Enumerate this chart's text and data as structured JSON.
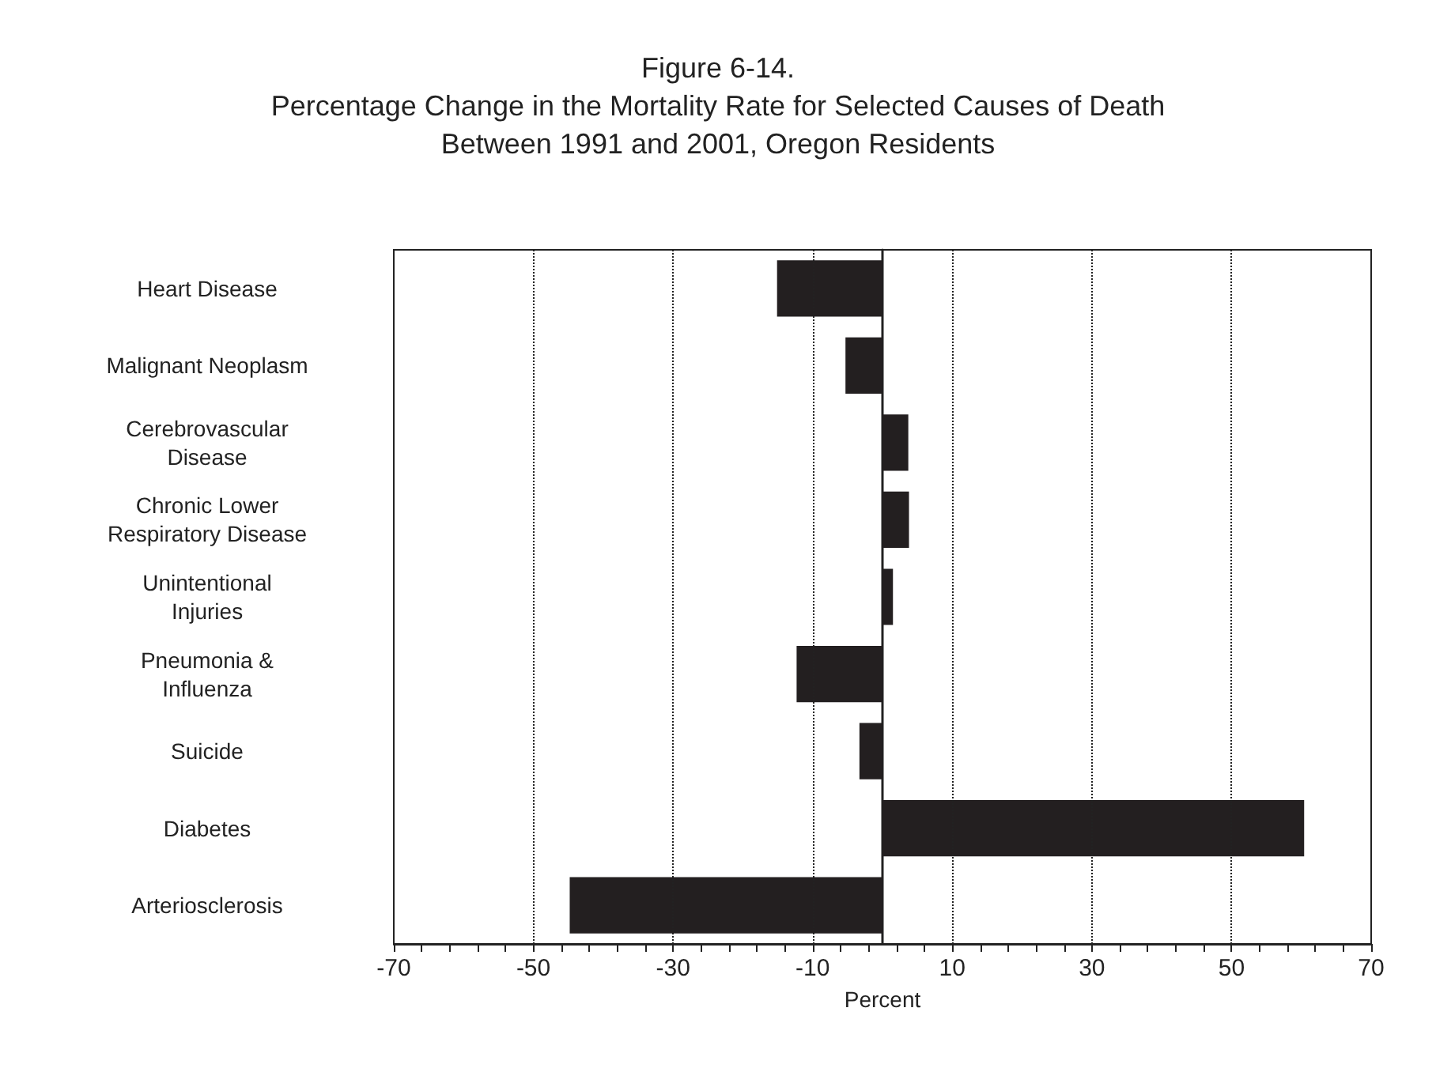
{
  "chart_data": {
    "type": "bar",
    "orientation": "horizontal",
    "title": "Figure 6-14.\nPercentage Change in the Mortality Rate for Selected Causes of Death\nBetween 1991 and 2001, Oregon Residents",
    "xlabel": "Percent",
    "categories": [
      "Heart Disease",
      "Malignant Neoplasm",
      "Cerebrovascular\nDisease",
      "Chronic Lower\nRespiratory Disease",
      "Unintentional\nInjuries",
      "Pneumonia &\nInfluenza",
      "Suicide",
      "Diabetes",
      "Arteriosclerosis"
    ],
    "values": [
      -15.1,
      -5.3,
      3.7,
      3.8,
      1.5,
      -12.3,
      -3.3,
      60.4,
      -44.8
    ],
    "color": "#231f20",
    "xlim": [
      -70,
      70
    ],
    "xticks": [
      -70,
      {
        "value": -66,
        "label": null
      },
      {
        "value": -62,
        "label": null
      },
      {
        "value": -58,
        "label": null
      },
      {
        "value": -54,
        "label": null
      },
      -50,
      {
        "value": -46,
        "label": null
      },
      {
        "value": -42,
        "label": null
      },
      {
        "value": -38,
        "label": null
      },
      {
        "value": -34,
        "label": null
      },
      -30,
      {
        "value": -26,
        "label": null
      },
      {
        "value": -22,
        "label": null
      },
      {
        "value": -18,
        "label": null
      },
      {
        "value": -14,
        "label": null
      },
      -10,
      {
        "value": -6,
        "label": null
      },
      {
        "value": -2,
        "label": null
      },
      {
        "value": 2,
        "label": null
      },
      {
        "value": 6,
        "label": null
      },
      10,
      {
        "value": 14,
        "label": null
      },
      {
        "value": 18,
        "label": null
      },
      {
        "value": 22,
        "label": null
      },
      {
        "value": 26,
        "label": null
      },
      30,
      {
        "value": 34,
        "label": null
      },
      {
        "value": 38,
        "label": null
      },
      {
        "value": 42,
        "label": null
      },
      {
        "value": 46,
        "label": null
      },
      50,
      {
        "value": 54,
        "label": null
      },
      {
        "value": 58,
        "label": null
      },
      {
        "value": 62,
        "label": null
      },
      {
        "value": 66,
        "label": null
      },
      70
    ],
    "grid": "x",
    "line_style": "dotted"
  }
}
